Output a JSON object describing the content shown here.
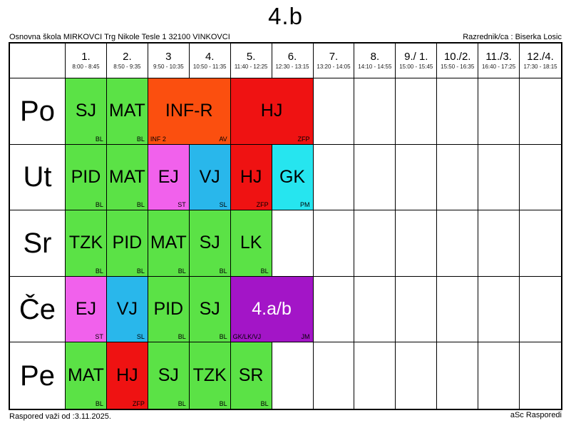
{
  "title": "4.b",
  "header": {
    "school": "Osnovna škola MIRKOVCI Trg Nikole Tesle 1 32100 VINKOVCI",
    "class_teacher": "Razrednik/ca : Biserka Losic"
  },
  "footer": {
    "valid_from": "Raspored važi od :3.11.2025.",
    "app_name": "aSc Rasporedi"
  },
  "colors": {
    "green": "#5BE246",
    "orange": "#FB4F0F",
    "red": "#EF1212",
    "magenta": "#F161EC",
    "blue": "#29B7EB",
    "cyan": "#26E5EF",
    "purple": "#A315C7",
    "grid": "#000000"
  },
  "periods": [
    {
      "label": "1.",
      "time": "8:00 - 8:45"
    },
    {
      "label": "2.",
      "time": "8:50 - 9:35"
    },
    {
      "label": "3",
      "time": "9:50 - 10:35"
    },
    {
      "label": "4.",
      "time": "10:50 - 11:35"
    },
    {
      "label": "5.",
      "time": "11:40 - 12:25"
    },
    {
      "label": "6.",
      "time": "12:30 - 13:15"
    },
    {
      "label": "7.",
      "time": "13:20 - 14:05"
    },
    {
      "label": "8.",
      "time": "14:10 - 14:55"
    },
    {
      "label": "9./ 1.",
      "time": "15:00 - 15:45"
    },
    {
      "label": "10./2.",
      "time": "15:50 - 16:35"
    },
    {
      "label": "11./3.",
      "time": "16:40 - 17:25"
    },
    {
      "label": "12./4.",
      "time": "17:30 - 18:15"
    }
  ],
  "days": [
    {
      "label": "Po",
      "lessons": [
        {
          "start": 1,
          "span": 1,
          "subject": "SJ",
          "color": "green",
          "bottom_right": "BL"
        },
        {
          "start": 2,
          "span": 1,
          "subject": "MAT",
          "color": "green",
          "bottom_right": "BL"
        },
        {
          "start": 3,
          "span": 2,
          "subject": "INF-R",
          "color": "orange",
          "bottom_left": "INF 2",
          "bottom_right": "AV"
        },
        {
          "start": 5,
          "span": 2,
          "subject": "HJ",
          "color": "red",
          "bottom_right": "ZFP"
        }
      ]
    },
    {
      "label": "Ut",
      "lessons": [
        {
          "start": 1,
          "span": 1,
          "subject": "PID",
          "color": "green",
          "bottom_right": "BL"
        },
        {
          "start": 2,
          "span": 1,
          "subject": "MAT",
          "color": "green",
          "bottom_right": "BL"
        },
        {
          "start": 3,
          "span": 1,
          "subject": "EJ",
          "color": "magenta",
          "bottom_right": "ST"
        },
        {
          "start": 4,
          "span": 1,
          "subject": "VJ",
          "color": "blue",
          "bottom_right": "SL"
        },
        {
          "start": 5,
          "span": 1,
          "subject": "HJ",
          "color": "red",
          "bottom_right": "ZFP"
        },
        {
          "start": 6,
          "span": 1,
          "subject": "GK",
          "color": "cyan",
          "bottom_right": "PM"
        }
      ]
    },
    {
      "label": "Sr",
      "lessons": [
        {
          "start": 1,
          "span": 1,
          "subject": "TZK",
          "color": "green",
          "bottom_right": "BL"
        },
        {
          "start": 2,
          "span": 1,
          "subject": "PID",
          "color": "green",
          "bottom_right": "BL"
        },
        {
          "start": 3,
          "span": 1,
          "subject": "MAT",
          "color": "green",
          "bottom_right": "BL"
        },
        {
          "start": 4,
          "span": 1,
          "subject": "SJ",
          "color": "green",
          "bottom_right": "BL"
        },
        {
          "start": 5,
          "span": 1,
          "subject": "LK",
          "color": "green",
          "bottom_right": "BL"
        }
      ]
    },
    {
      "label": "Če",
      "lessons": [
        {
          "start": 1,
          "span": 1,
          "subject": "EJ",
          "color": "magenta",
          "bottom_right": "ST"
        },
        {
          "start": 2,
          "span": 1,
          "subject": "VJ",
          "color": "blue",
          "bottom_right": "SL"
        },
        {
          "start": 3,
          "span": 1,
          "subject": "PID",
          "color": "green",
          "bottom_right": "BL"
        },
        {
          "start": 4,
          "span": 1,
          "subject": "SJ",
          "color": "green",
          "bottom_right": "BL"
        },
        {
          "start": 5,
          "span": 2,
          "subject": "4.a/b",
          "color": "purple",
          "text_color": "#FFFFFF",
          "bottom_left": "GK/LK/VJ",
          "bottom_right": "JM"
        }
      ]
    },
    {
      "label": "Pe",
      "lessons": [
        {
          "start": 1,
          "span": 1,
          "subject": "MAT",
          "color": "green",
          "bottom_right": "BL"
        },
        {
          "start": 2,
          "span": 1,
          "subject": "HJ",
          "color": "red",
          "bottom_right": "ZFP"
        },
        {
          "start": 3,
          "span": 1,
          "subject": "SJ",
          "color": "green",
          "bottom_right": "BL"
        },
        {
          "start": 4,
          "span": 1,
          "subject": "TZK",
          "color": "green",
          "bottom_right": "BL"
        },
        {
          "start": 5,
          "span": 1,
          "subject": "SR",
          "color": "green",
          "bottom_right": "BL"
        }
      ]
    }
  ]
}
